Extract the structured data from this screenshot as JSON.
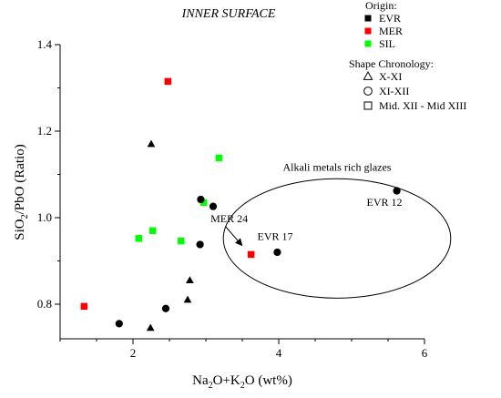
{
  "chart_data": {
    "type": "scatter",
    "title": "INNER SURFACE",
    "x_axis": {
      "base": "Na",
      "sub1": "2",
      "mid": "O+K",
      "sub2": "2",
      "tail": "O (wt%)",
      "range": [
        1,
        6
      ],
      "ticks": [
        2,
        4,
        6
      ]
    },
    "y_axis": {
      "base": "SiO",
      "sub1": "2",
      "mid": "/PbO (Ratio)",
      "range": [
        0.72,
        1.4
      ],
      "ticks": [
        0.8,
        1.0,
        1.2,
        1.4
      ]
    },
    "grid": false,
    "legend": {
      "origin_title": "Origin:",
      "origins": [
        {
          "key": "EVR",
          "label": "EVR",
          "color": "#000000"
        },
        {
          "key": "MER",
          "label": "MER",
          "color": "#ff0000"
        },
        {
          "key": "SIL",
          "label": "SIL",
          "color": "#00ff00"
        }
      ],
      "shape_title": "Shape Chronology:",
      "shapes": [
        {
          "key": "triangle",
          "label": "X-XI"
        },
        {
          "key": "circle",
          "label": "XI-XII"
        },
        {
          "key": "square",
          "label": "Mid. XII - Mid XIII"
        }
      ]
    },
    "points": [
      {
        "x": 1.33,
        "y": 0.795,
        "origin": "MER",
        "shape": "square"
      },
      {
        "x": 2.48,
        "y": 1.315,
        "origin": "MER",
        "shape": "square"
      },
      {
        "x": 3.62,
        "y": 0.915,
        "origin": "MER",
        "shape": "square"
      },
      {
        "x": 2.08,
        "y": 0.952,
        "origin": "SIL",
        "shape": "square"
      },
      {
        "x": 2.27,
        "y": 0.97,
        "origin": "SIL",
        "shape": "square"
      },
      {
        "x": 2.66,
        "y": 0.946,
        "origin": "SIL",
        "shape": "square"
      },
      {
        "x": 2.97,
        "y": 1.035,
        "origin": "SIL",
        "shape": "square"
      },
      {
        "x": 3.18,
        "y": 1.138,
        "origin": "SIL",
        "shape": "square"
      },
      {
        "x": 2.25,
        "y": 1.17,
        "origin": "EVR",
        "shape": "triangle"
      },
      {
        "x": 2.24,
        "y": 0.745,
        "origin": "EVR",
        "shape": "triangle"
      },
      {
        "x": 2.75,
        "y": 0.81,
        "origin": "EVR",
        "shape": "triangle"
      },
      {
        "x": 2.78,
        "y": 0.855,
        "origin": "EVR",
        "shape": "triangle"
      },
      {
        "x": 1.81,
        "y": 0.755,
        "origin": "EVR",
        "shape": "circle"
      },
      {
        "x": 2.45,
        "y": 0.79,
        "origin": "EVR",
        "shape": "circle"
      },
      {
        "x": 2.92,
        "y": 0.938,
        "origin": "EVR",
        "shape": "circle"
      },
      {
        "x": 2.93,
        "y": 1.042,
        "origin": "EVR",
        "shape": "circle"
      },
      {
        "x": 3.1,
        "y": 1.026,
        "origin": "EVR",
        "shape": "circle"
      },
      {
        "x": 3.98,
        "y": 0.92,
        "origin": "EVR",
        "shape": "circle"
      },
      {
        "x": 5.62,
        "y": 1.062,
        "origin": "EVR",
        "shape": "circle"
      }
    ],
    "annotations": {
      "group_label": "Alkali metals rich glazes",
      "labels": [
        {
          "text": "EVR 12",
          "x": 5.45,
          "y": 1.027
        },
        {
          "text": "EVR 17",
          "x": 3.95,
          "y": 0.948
        },
        {
          "text": "MER 24",
          "x": 3.32,
          "y": 0.99
        }
      ],
      "ellipse": {
        "cx": 4.8,
        "cy": 0.952,
        "rx": 1.56,
        "ry": 0.138
      }
    }
  }
}
